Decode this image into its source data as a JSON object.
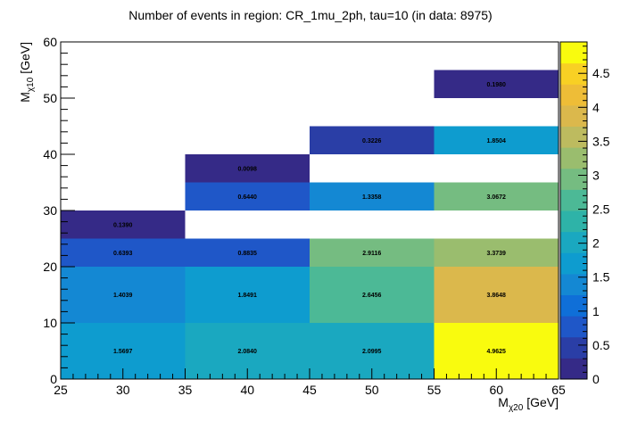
{
  "chart_data": {
    "type": "heatmap",
    "title": "Number of events in region: CR_1mu_2ph, tau=10 (in data: 8975)",
    "xlabel": {
      "main": "M",
      "sub": "χ20",
      "unit": " [GeV]"
    },
    "ylabel": {
      "main": "M",
      "sub": "χ10",
      "unit": " [GeV]"
    },
    "xlim": [
      25,
      65
    ],
    "ylim": [
      0,
      60
    ],
    "x_ticks": [
      25,
      30,
      35,
      40,
      45,
      50,
      55,
      60,
      65
    ],
    "y_ticks": [
      0,
      10,
      20,
      30,
      40,
      50,
      60
    ],
    "z_range": [
      0,
      4.9625
    ],
    "z_ticks": [
      "0",
      "0.5",
      "1",
      "1.5",
      "2",
      "2.5",
      "3",
      "3.5",
      "4",
      "4.5"
    ],
    "palette": [
      "#352a87",
      "#2a3ea6",
      "#1f57c8",
      "#0f6fd8",
      "#1488d3",
      "#0e9ccf",
      "#1aa8c0",
      "#2eb3a8",
      "#4cb996",
      "#75bc81",
      "#9abd6e",
      "#bdbb5f",
      "#dbb84c",
      "#eebd37",
      "#f8d024",
      "#f9fb0e"
    ],
    "cells": [
      {
        "x0": 25,
        "x1": 35,
        "y0": 0,
        "y1": 10,
        "value": 1.5697,
        "label": "1.5697"
      },
      {
        "x0": 35,
        "x1": 45,
        "y0": 0,
        "y1": 10,
        "value": 2.084,
        "label": "2.0840"
      },
      {
        "x0": 45,
        "x1": 55,
        "y0": 0,
        "y1": 10,
        "value": 2.0995,
        "label": "2.0995"
      },
      {
        "x0": 55,
        "x1": 65,
        "y0": 0,
        "y1": 10,
        "value": 4.9625,
        "label": "4.9625"
      },
      {
        "x0": 25,
        "x1": 35,
        "y0": 10,
        "y1": 20,
        "value": 1.4039,
        "label": "1.4039"
      },
      {
        "x0": 35,
        "x1": 45,
        "y0": 10,
        "y1": 20,
        "value": 1.8491,
        "label": "1.8491"
      },
      {
        "x0": 45,
        "x1": 55,
        "y0": 10,
        "y1": 20,
        "value": 2.6456,
        "label": "2.6456"
      },
      {
        "x0": 55,
        "x1": 65,
        "y0": 10,
        "y1": 20,
        "value": 3.8648,
        "label": "3.8648"
      },
      {
        "x0": 25,
        "x1": 35,
        "y0": 20,
        "y1": 25,
        "value": 0.6393,
        "label": "0.6393"
      },
      {
        "x0": 35,
        "x1": 45,
        "y0": 20,
        "y1": 25,
        "value": 0.8835,
        "label": "0.8835"
      },
      {
        "x0": 45,
        "x1": 55,
        "y0": 20,
        "y1": 25,
        "value": 2.9116,
        "label": "2.9116"
      },
      {
        "x0": 55,
        "x1": 65,
        "y0": 20,
        "y1": 25,
        "value": 3.3739,
        "label": "3.3739"
      },
      {
        "x0": 25,
        "x1": 35,
        "y0": 25,
        "y1": 30,
        "value": 0.139,
        "label": "0.1390"
      },
      {
        "x0": 35,
        "x1": 45,
        "y0": 30,
        "y1": 35,
        "value": 0.644,
        "label": "0.6440"
      },
      {
        "x0": 45,
        "x1": 55,
        "y0": 30,
        "y1": 35,
        "value": 1.3358,
        "label": "1.3358"
      },
      {
        "x0": 55,
        "x1": 65,
        "y0": 30,
        "y1": 35,
        "value": 3.0672,
        "label": "3.0672"
      },
      {
        "x0": 35,
        "x1": 45,
        "y0": 35,
        "y1": 40,
        "value": 0.0098,
        "label": "0.0098"
      },
      {
        "x0": 45,
        "x1": 55,
        "y0": 40,
        "y1": 45,
        "value": 0.3226,
        "label": "0.3226"
      },
      {
        "x0": 55,
        "x1": 65,
        "y0": 40,
        "y1": 45,
        "value": 1.8504,
        "label": "1.8504"
      },
      {
        "x0": 55,
        "x1": 65,
        "y0": 50,
        "y1": 55,
        "value": 0.198,
        "label": "0.1980"
      }
    ]
  }
}
